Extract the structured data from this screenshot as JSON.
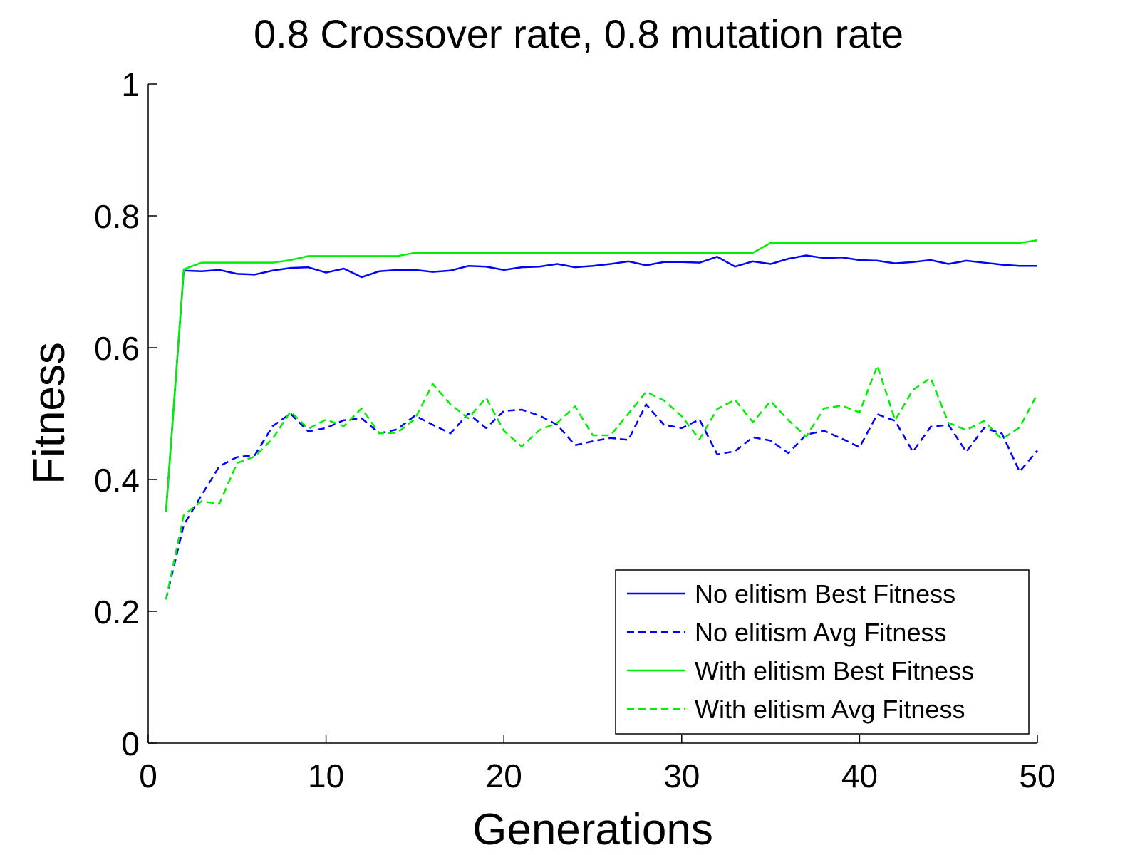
{
  "chart_data": {
    "type": "line",
    "title": "0.8 Crossover rate, 0.8 mutation rate",
    "xlabel": "Generations",
    "ylabel": "Fitness",
    "xlim": [
      0,
      50
    ],
    "ylim": [
      0,
      1
    ],
    "xticks": [
      "0",
      "10",
      "20",
      "30",
      "40",
      "50"
    ],
    "yticks": [
      "0",
      "0.2",
      "0.4",
      "0.6",
      "0.8",
      "1"
    ],
    "legend_position": "bottom-right",
    "x": [
      1,
      2,
      3,
      4,
      5,
      6,
      7,
      8,
      9,
      10,
      11,
      12,
      13,
      14,
      15,
      16,
      17,
      18,
      19,
      20,
      21,
      22,
      23,
      24,
      25,
      26,
      27,
      28,
      29,
      30,
      31,
      32,
      33,
      34,
      35,
      36,
      37,
      38,
      39,
      40,
      41,
      42,
      43,
      44,
      45,
      46,
      47,
      48,
      49,
      50
    ],
    "series": [
      {
        "name": "No elitism Best Fitness",
        "color": "#0000ff",
        "style": "solid",
        "values": [
          0.351,
          0.717,
          0.716,
          0.718,
          0.712,
          0.711,
          0.717,
          0.721,
          0.722,
          0.714,
          0.72,
          0.707,
          0.716,
          0.718,
          0.718,
          0.715,
          0.717,
          0.724,
          0.723,
          0.718,
          0.722,
          0.723,
          0.727,
          0.722,
          0.724,
          0.727,
          0.731,
          0.725,
          0.73,
          0.73,
          0.729,
          0.738,
          0.723,
          0.731,
          0.727,
          0.735,
          0.74,
          0.736,
          0.737,
          0.733,
          0.732,
          0.728,
          0.73,
          0.733,
          0.727,
          0.732,
          0.729,
          0.726,
          0.724,
          0.724
        ]
      },
      {
        "name": "No elitism Avg Fitness",
        "color": "#0000ff",
        "style": "dashed",
        "values": [
          0.218,
          0.331,
          0.376,
          0.42,
          0.434,
          0.437,
          0.481,
          0.5,
          0.473,
          0.478,
          0.49,
          0.493,
          0.47,
          0.476,
          0.497,
          0.483,
          0.47,
          0.5,
          0.478,
          0.504,
          0.506,
          0.497,
          0.483,
          0.452,
          0.458,
          0.463,
          0.46,
          0.514,
          0.483,
          0.478,
          0.491,
          0.438,
          0.443,
          0.464,
          0.459,
          0.44,
          0.468,
          0.474,
          0.462,
          0.449,
          0.499,
          0.489,
          0.442,
          0.48,
          0.483,
          0.442,
          0.478,
          0.47,
          0.412,
          0.444
        ]
      },
      {
        "name": "With elitism Best Fitness",
        "color": "#00ee00",
        "style": "solid",
        "values": [
          0.351,
          0.719,
          0.729,
          0.729,
          0.729,
          0.729,
          0.729,
          0.733,
          0.739,
          0.739,
          0.739,
          0.739,
          0.739,
          0.739,
          0.744,
          0.744,
          0.744,
          0.744,
          0.744,
          0.744,
          0.744,
          0.744,
          0.744,
          0.744,
          0.744,
          0.744,
          0.744,
          0.744,
          0.744,
          0.744,
          0.744,
          0.744,
          0.744,
          0.744,
          0.759,
          0.759,
          0.759,
          0.759,
          0.759,
          0.759,
          0.759,
          0.759,
          0.759,
          0.759,
          0.759,
          0.759,
          0.759,
          0.759,
          0.759,
          0.763
        ]
      },
      {
        "name": "With elitism Avg Fitness",
        "color": "#00ee00",
        "style": "dashed",
        "values": [
          0.218,
          0.346,
          0.367,
          0.363,
          0.425,
          0.435,
          0.462,
          0.503,
          0.477,
          0.491,
          0.481,
          0.508,
          0.47,
          0.471,
          0.492,
          0.545,
          0.514,
          0.493,
          0.524,
          0.474,
          0.45,
          0.475,
          0.486,
          0.511,
          0.467,
          0.467,
          0.5,
          0.533,
          0.52,
          0.496,
          0.461,
          0.507,
          0.521,
          0.487,
          0.519,
          0.49,
          0.465,
          0.508,
          0.512,
          0.502,
          0.573,
          0.49,
          0.536,
          0.554,
          0.486,
          0.475,
          0.489,
          0.461,
          0.479,
          0.53
        ]
      }
    ]
  }
}
